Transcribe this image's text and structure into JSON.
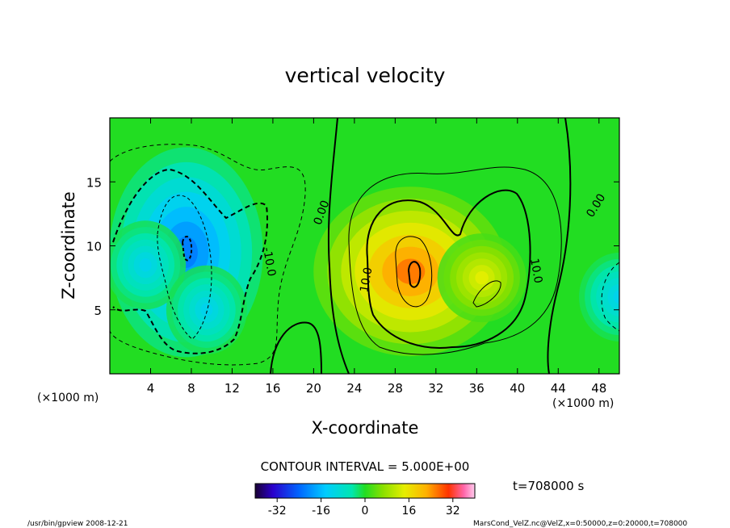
{
  "chart_data": {
    "type": "heatmap",
    "title": "vertical velocity",
    "xlabel": "X-coordinate",
    "ylabel": "Z-coordinate",
    "x_unit": "(×1000 m)",
    "y_unit": "(×1000 m)",
    "xlim": [
      0,
      50
    ],
    "ylim": [
      0,
      20
    ],
    "x_ticks": [
      "4",
      "8",
      "12",
      "16",
      "20",
      "24",
      "28",
      "32",
      "36",
      "40",
      "44",
      "48"
    ],
    "x_tick_values": [
      4,
      8,
      12,
      16,
      20,
      24,
      28,
      32,
      36,
      40,
      44,
      48
    ],
    "y_ticks": [
      "5",
      "10",
      "15"
    ],
    "y_tick_values": [
      5,
      10,
      15
    ],
    "contour_interval_text": "CONTOUR INTERVAL = 5.000E+00",
    "time_text": "t=708000 s",
    "contour_labels": [
      {
        "text": "0.00",
        "x": 21.1,
        "y": 12.5,
        "rotate": -70
      },
      {
        "text": "0.00",
        "x": 48.0,
        "y": 13.0,
        "rotate": -58
      },
      {
        "text": "-10.0",
        "x": 15.3,
        "y": 8.7,
        "rotate": 80
      },
      {
        "text": "10.0",
        "x": 25.5,
        "y": 7.3,
        "rotate": -80
      },
      {
        "text": "10.0",
        "x": 41.5,
        "y": 8.0,
        "rotate": 80
      }
    ],
    "colorbar": {
      "min": -40,
      "max": 40,
      "tick_labels": [
        "-32",
        "-16",
        "0",
        "16",
        "32"
      ],
      "tick_values": [
        -32,
        -16,
        0,
        16,
        32
      ]
    },
    "features": [
      {
        "sign": "negative",
        "x": 7.5,
        "y": 9.5,
        "peak": -22
      },
      {
        "sign": "negative",
        "x": 3.5,
        "y": 8.5,
        "peak": -12
      },
      {
        "sign": "negative",
        "x": 9.5,
        "y": 5.0,
        "peak": -12
      },
      {
        "sign": "positive",
        "x": 29.5,
        "y": 8.0,
        "peak": 26
      },
      {
        "sign": "positive",
        "x": 36.5,
        "y": 7.5,
        "peak": 14
      },
      {
        "sign": "negative",
        "x": 50.0,
        "y": 6.0,
        "peak": -12
      }
    ]
  },
  "footer": {
    "left": "/usr/bin/gpview   2008-12-21",
    "right": "MarsCond_VelZ.nc@VelZ,x=0:50000,z=0:20000,t=708000"
  }
}
